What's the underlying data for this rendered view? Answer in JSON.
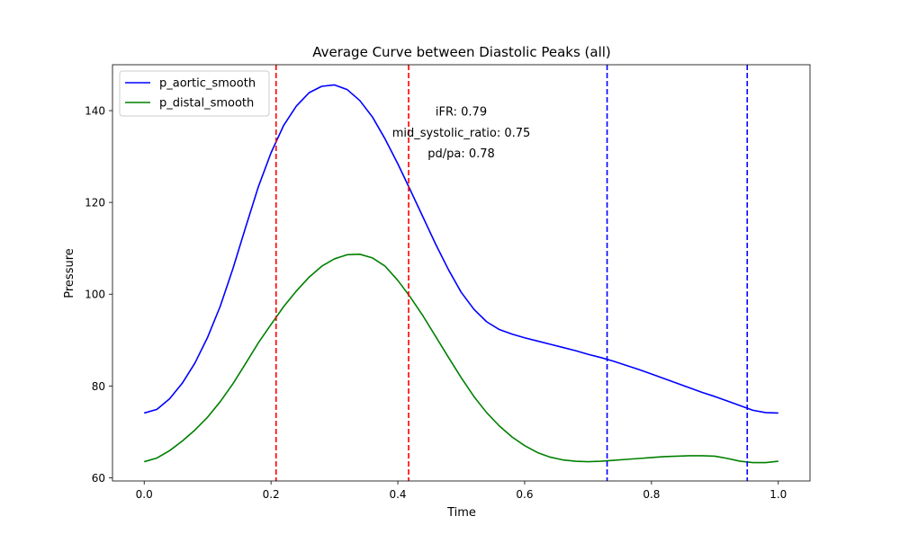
{
  "chart_data": {
    "type": "line",
    "title": "Average Curve between Diastolic Peaks (all)",
    "xlabel": "Time",
    "ylabel": "Pressure",
    "xlim": [
      -0.05,
      1.05
    ],
    "ylim": [
      59.3,
      150
    ],
    "xticks": [
      0.0,
      0.2,
      0.4,
      0.6,
      0.8,
      1.0
    ],
    "xtick_labels": [
      "0.0",
      "0.2",
      "0.4",
      "0.6",
      "0.8",
      "1.0"
    ],
    "yticks": [
      60,
      80,
      100,
      120,
      140
    ],
    "ytick_labels": [
      "60",
      "80",
      "100",
      "120",
      "140"
    ],
    "grid": false,
    "legend_position": "top-left",
    "series": [
      {
        "name": "p_aortic_smooth",
        "color": "#0000ff",
        "x": [
          0.0,
          0.02,
          0.04,
          0.06,
          0.08,
          0.1,
          0.12,
          0.14,
          0.16,
          0.18,
          0.2,
          0.22,
          0.24,
          0.26,
          0.28,
          0.3,
          0.32,
          0.34,
          0.36,
          0.38,
          0.4,
          0.42,
          0.44,
          0.46,
          0.48,
          0.5,
          0.52,
          0.54,
          0.56,
          0.58,
          0.6,
          0.62,
          0.64,
          0.66,
          0.68,
          0.7,
          0.72,
          0.74,
          0.76,
          0.78,
          0.8,
          0.82,
          0.84,
          0.86,
          0.88,
          0.9,
          0.92,
          0.94,
          0.96,
          0.98,
          1.0
        ],
        "y": [
          74.1,
          74.9,
          77.2,
          80.6,
          85.0,
          90.6,
          97.4,
          105.6,
          114.6,
          123.4,
          130.8,
          136.8,
          141.0,
          143.9,
          145.3,
          145.6,
          144.6,
          142.2,
          138.6,
          133.8,
          128.4,
          122.6,
          116.7,
          110.8,
          105.3,
          100.4,
          96.7,
          94.0,
          92.3,
          91.3,
          90.5,
          89.8,
          89.1,
          88.4,
          87.7,
          86.9,
          86.2,
          85.4,
          84.5,
          83.6,
          82.6,
          81.6,
          80.6,
          79.6,
          78.6,
          77.7,
          76.7,
          75.7,
          74.7,
          74.2,
          74.1
        ]
      },
      {
        "name": "p_distal_smooth",
        "color": "#008000",
        "x": [
          0.0,
          0.02,
          0.04,
          0.06,
          0.08,
          0.1,
          0.12,
          0.14,
          0.16,
          0.18,
          0.2,
          0.22,
          0.24,
          0.26,
          0.28,
          0.3,
          0.32,
          0.34,
          0.36,
          0.38,
          0.4,
          0.42,
          0.44,
          0.46,
          0.48,
          0.5,
          0.52,
          0.54,
          0.56,
          0.58,
          0.6,
          0.62,
          0.64,
          0.66,
          0.68,
          0.7,
          0.72,
          0.74,
          0.76,
          0.78,
          0.8,
          0.82,
          0.84,
          0.86,
          0.88,
          0.9,
          0.92,
          0.94,
          0.96,
          0.98,
          1.0
        ],
        "y": [
          63.5,
          64.3,
          65.9,
          68.0,
          70.4,
          73.2,
          76.6,
          80.5,
          84.9,
          89.4,
          93.4,
          97.3,
          100.7,
          103.7,
          106.1,
          107.7,
          108.6,
          108.7,
          107.9,
          106.1,
          103.0,
          99.3,
          95.2,
          90.7,
          86.2,
          81.8,
          77.7,
          74.2,
          71.3,
          68.9,
          67.0,
          65.5,
          64.5,
          63.9,
          63.6,
          63.5,
          63.6,
          63.8,
          64.0,
          64.2,
          64.4,
          64.6,
          64.7,
          64.8,
          64.8,
          64.7,
          64.2,
          63.6,
          63.3,
          63.3,
          63.6
        ]
      }
    ],
    "vlines": [
      {
        "x": 0.208,
        "color": "#ff0000",
        "style": "dashed"
      },
      {
        "x": 0.417,
        "color": "#ff0000",
        "style": "dashed"
      },
      {
        "x": 0.73,
        "color": "#0000ff",
        "style": "dashed"
      },
      {
        "x": 0.951,
        "color": "#0000ff",
        "style": "dashed"
      }
    ],
    "annotations": [
      {
        "text": "iFR: 0.79",
        "x": 0.5,
        "y": 139.9
      },
      {
        "text": "mid_systolic_ratio: 0.75",
        "x": 0.5,
        "y": 135.3
      },
      {
        "text": "pd/pa: 0.78",
        "x": 0.5,
        "y": 130.8
      }
    ]
  }
}
